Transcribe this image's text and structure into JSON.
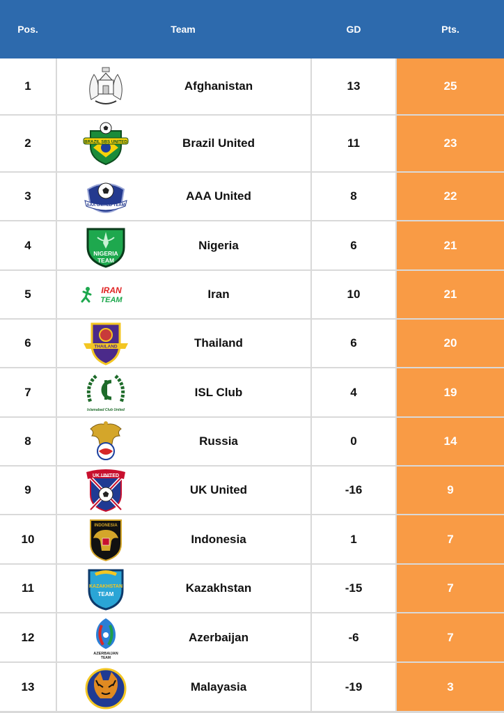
{
  "header": {
    "pos": "Pos.",
    "team": "Team",
    "gd": "GD",
    "pts": "Pts."
  },
  "colors": {
    "header_bg": "#2d6aad",
    "points_bg": "#f99b45",
    "grid": "#d9d9d9"
  },
  "rows": [
    {
      "pos": "1",
      "team": "Afghanistan",
      "gd": "13",
      "pts": "25",
      "icon": "afghanistan-emblem-icon"
    },
    {
      "pos": "2",
      "team": "Brazil United",
      "gd": "11",
      "pts": "23",
      "icon": "brazil-united-crest-icon",
      "logo_text": "BRAZIL SBS UNITED"
    },
    {
      "pos": "3",
      "team": "AAA United",
      "gd": "8",
      "pts": "22",
      "icon": "aaa-united-crest-icon",
      "logo_text": "AAA UNITED TEAM"
    },
    {
      "pos": "4",
      "team": "Nigeria",
      "gd": "6",
      "pts": "21",
      "icon": "nigeria-team-crest-icon",
      "logo_text": "NIGERIA TEAM"
    },
    {
      "pos": "5",
      "team": "Iran",
      "gd": "10",
      "pts": "21",
      "icon": "iran-team-logo-icon",
      "logo_text": "IRAN TEAM"
    },
    {
      "pos": "6",
      "team": "Thailand",
      "gd": "6",
      "pts": "20",
      "icon": "thailand-crest-icon",
      "logo_text": "THAILAND"
    },
    {
      "pos": "7",
      "team": "ISL Club",
      "gd": "4",
      "pts": "19",
      "icon": "isl-club-wreath-icon",
      "logo_text": "Islamabad Club United"
    },
    {
      "pos": "8",
      "team": "Russia",
      "gd": "0",
      "pts": "14",
      "icon": "russia-eagle-crest-icon"
    },
    {
      "pos": "9",
      "team": "UK United",
      "gd": "-16",
      "pts": "9",
      "icon": "uk-united-crest-icon",
      "logo_text": "UK UNITED"
    },
    {
      "pos": "10",
      "team": "Indonesia",
      "gd": "1",
      "pts": "7",
      "icon": "indonesia-crest-icon",
      "logo_text": "INDONESIA"
    },
    {
      "pos": "11",
      "team": "Kazakhstan",
      "gd": "-15",
      "pts": "7",
      "icon": "kazakhstan-team-crest-icon",
      "logo_text": "KAZAKHSTAN TEAM"
    },
    {
      "pos": "12",
      "team": "Azerbaijan",
      "gd": "-6",
      "pts": "7",
      "icon": "azerbaijan-team-crest-icon",
      "logo_text": "AZERBAIJAN TEAM"
    },
    {
      "pos": "13",
      "team": "Malayasia",
      "gd": "-19",
      "pts": "3",
      "icon": "malaysia-tiger-crest-icon"
    }
  ]
}
